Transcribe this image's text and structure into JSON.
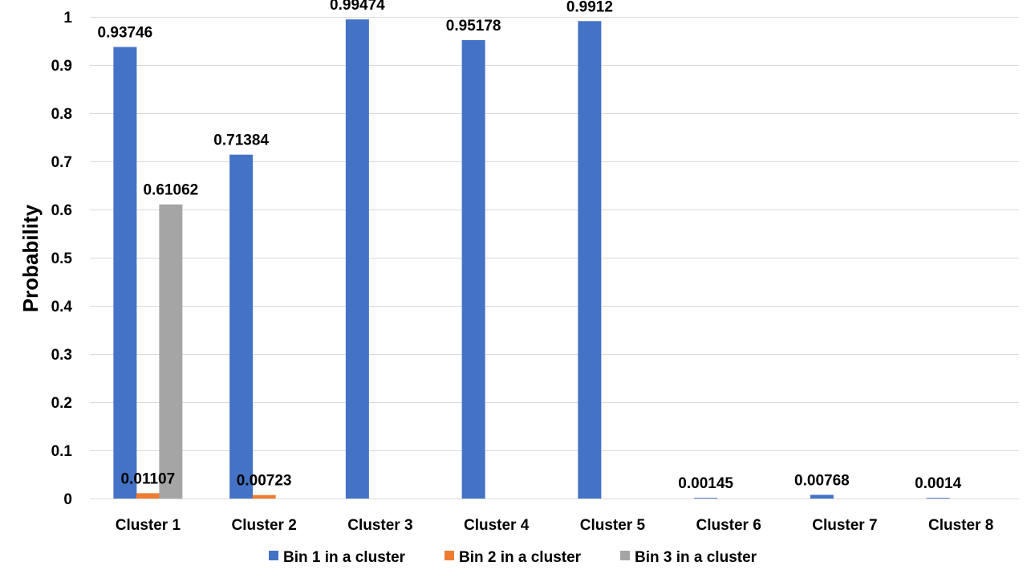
{
  "chart_data": {
    "type": "bar",
    "categories": [
      "Cluster 1",
      "Cluster 2",
      "Cluster 3",
      "Cluster 4",
      "Cluster 5",
      "Cluster 6",
      "Cluster 7",
      "Cluster 8"
    ],
    "series": [
      {
        "name": "Bin 1 in a cluster",
        "color": "#4472c4",
        "values": [
          0.93746,
          0.71384,
          0.99474,
          0.95178,
          0.9912,
          0.00145,
          0.00768,
          0.0014
        ],
        "labels": [
          "0.93746",
          "0.71384",
          "0.99474",
          "0.95178",
          "0.9912",
          "0.00145",
          "0.00768",
          "0.0014"
        ]
      },
      {
        "name": "Bin 2 in a cluster",
        "color": "#ed7d31",
        "values": [
          0.01107,
          0.00723,
          null,
          null,
          null,
          null,
          null,
          null
        ],
        "labels": [
          "0.01107",
          "0.00723",
          null,
          null,
          null,
          null,
          null,
          null
        ]
      },
      {
        "name": "Bin 3 in a cluster",
        "color": "#a5a5a5",
        "values": [
          0.61062,
          null,
          null,
          null,
          null,
          null,
          null,
          null
        ],
        "labels": [
          "0.61062",
          null,
          null,
          null,
          null,
          null,
          null,
          null
        ]
      }
    ],
    "title": "",
    "xlabel": "",
    "ylabel": "Probability",
    "ylim": [
      0,
      1
    ],
    "yticks": [
      "0",
      "0.1",
      "0.2",
      "0.3",
      "0.4",
      "0.5",
      "0.6",
      "0.7",
      "0.8",
      "0.9",
      "1"
    ],
    "grid": true,
    "legend_position": "bottom"
  }
}
